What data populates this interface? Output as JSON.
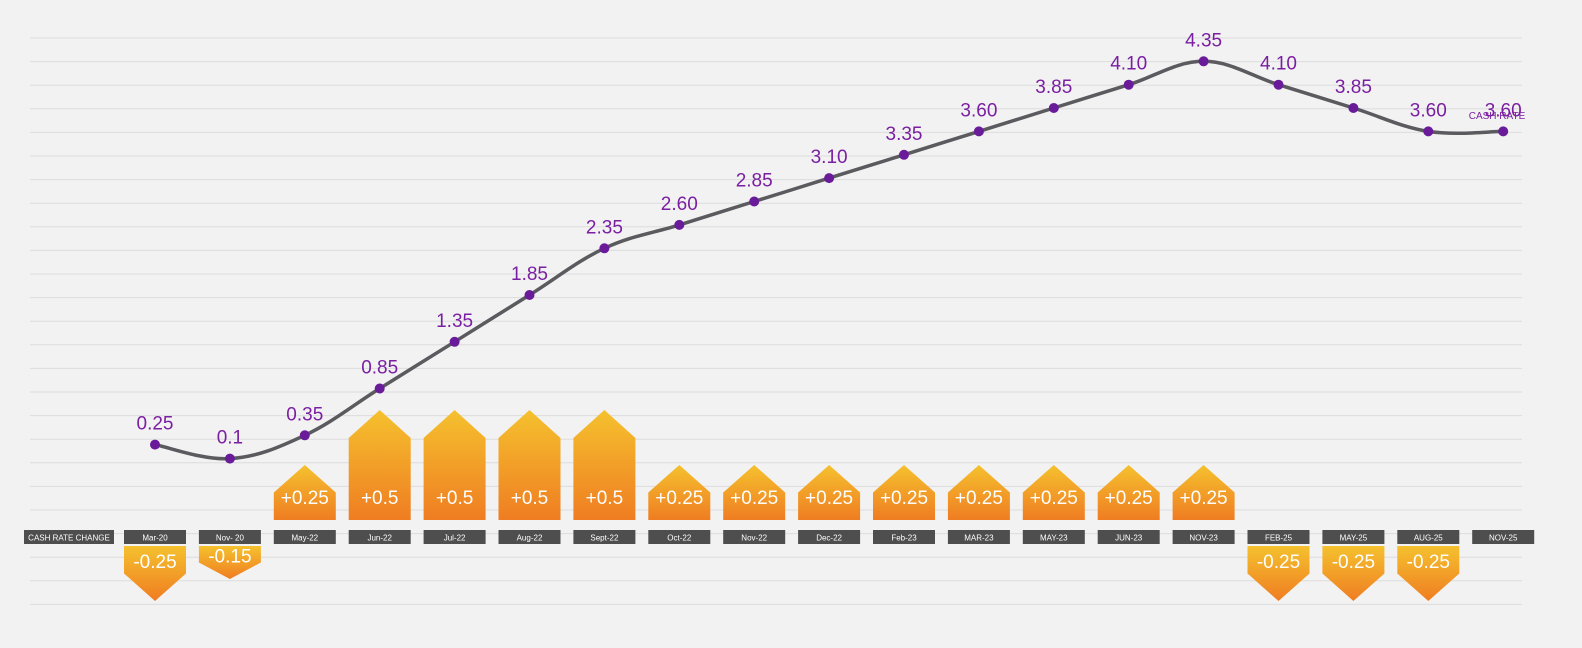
{
  "chart_data": {
    "type": "line",
    "row_label": "CASH RATE CHANGE",
    "series_label": "CASH RATE",
    "categories": [
      "Mar-20",
      "Nov- 20",
      "May-22",
      "Jun-22",
      "Jul-22",
      "Aug-22",
      "Sept-22",
      "Oct-22",
      "Nov-22",
      "Dec-22",
      "Feb-23",
      "MAR-23",
      "MAY-23",
      "JUN-23",
      "NOV-23",
      "FEB-25",
      "MAY-25",
      "AUG-25",
      "NOV-25"
    ],
    "series": [
      {
        "values": [
          0.25,
          0.1,
          0.35,
          0.85,
          1.35,
          1.85,
          2.35,
          2.6,
          2.85,
          3.1,
          3.35,
          3.6,
          3.85,
          4.1,
          4.35,
          4.1,
          3.85,
          3.6,
          3.6
        ],
        "labels": [
          "0.25",
          "0.1",
          "0.35",
          "0.85",
          "1.35",
          "1.85",
          "2.35",
          "2.60",
          "2.85",
          "3.10",
          "3.35",
          "3.60",
          "3.85",
          "4.10",
          "4.35",
          "4.10",
          "3.85",
          "3.60",
          "3.60"
        ]
      }
    ],
    "changes": [
      -0.25,
      -0.15,
      0.25,
      0.5,
      0.5,
      0.5,
      0.5,
      0.25,
      0.25,
      0.25,
      0.25,
      0.25,
      0.25,
      0.25,
      0.25,
      -0.25,
      -0.25,
      -0.25,
      null
    ],
    "change_labels": [
      "-0.25",
      "-0.15",
      "+0.25",
      "+0.5",
      "+0.5",
      "+0.5",
      "+0.5",
      "+0.25",
      "+0.25",
      "+0.25",
      "+0.25",
      "+0.25",
      "+0.25",
      "+0.25",
      "+0.25",
      "-0.25",
      "-0.25",
      "-0.25",
      ""
    ],
    "ylim": [
      0,
      4.5
    ],
    "grid": true,
    "colors": {
      "line": "#5a5a5f",
      "point": "#6a1b9a",
      "value_label": "#7a1fa2",
      "category_box": "#4e4e4e",
      "category_text": "#ffffff",
      "arrow_top": "#f5c12e",
      "arrow_bottom": "#ef7d22",
      "gridline": "#dcdcdc",
      "background": "#f2f2f2"
    }
  }
}
